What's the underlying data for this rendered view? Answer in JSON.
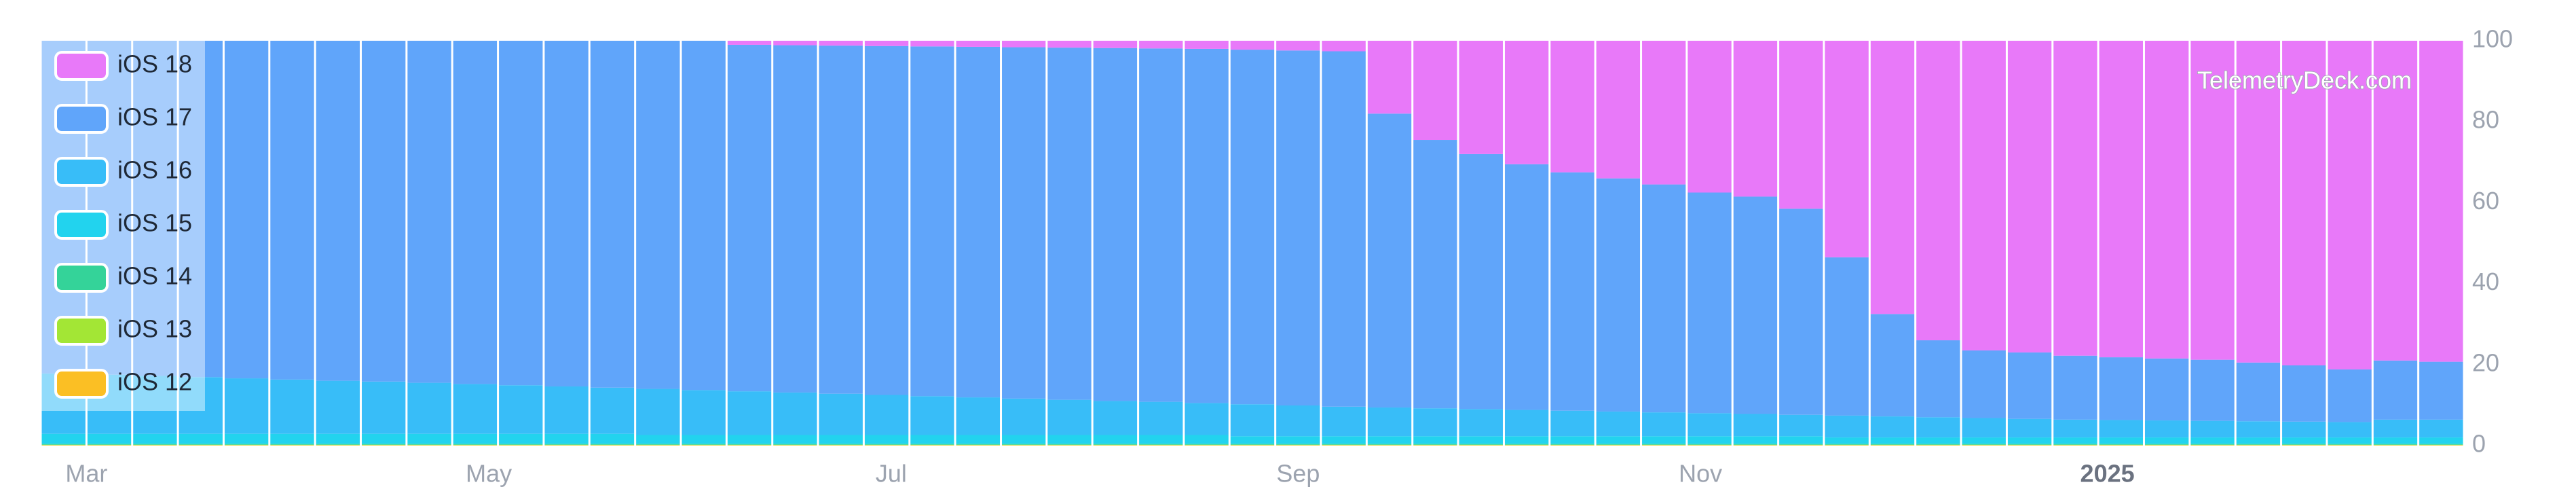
{
  "chart_data": {
    "type": "stacked-bar",
    "watermark": "TelemetryDeck.com",
    "legend": "upper-left",
    "x": [
      0,
      1,
      2,
      3,
      4,
      5,
      6,
      7,
      8,
      9,
      10,
      11,
      12,
      13,
      14,
      15,
      16,
      17,
      18,
      19,
      20,
      21,
      22,
      23,
      24,
      25,
      26,
      27,
      28,
      29,
      30,
      31,
      32,
      33,
      34,
      35,
      36,
      37,
      38,
      39,
      40,
      41,
      42,
      43,
      44,
      45,
      46,
      47,
      48,
      49,
      50,
      51,
      52
    ],
    "xlim": [
      0,
      53
    ],
    "xticks": [
      {
        "value": 1.0,
        "label": "Mar"
      },
      {
        "value": 9.8,
        "label": "May"
      },
      {
        "value": 18.6,
        "label": "Jul"
      },
      {
        "value": 27.5,
        "label": "Sep"
      },
      {
        "value": 36.3,
        "label": "Nov"
      },
      {
        "value": 45.2,
        "label": "2025",
        "bold": true
      }
    ],
    "ylim": [
      0,
      100
    ],
    "yticks": [
      0,
      20,
      40,
      60,
      80,
      100
    ],
    "series": [
      {
        "name": "iOS 18",
        "color": "#e879f9",
        "values": [
          0,
          0,
          0,
          0,
          0,
          0,
          0,
          0,
          0,
          0,
          0,
          0,
          0,
          0,
          0,
          1.0,
          1.1,
          1.2,
          1.3,
          1.4,
          1.5,
          1.6,
          1.7,
          1.8,
          1.9,
          2.0,
          2.2,
          2.4,
          2.6,
          18,
          24.5,
          28,
          30.5,
          32.5,
          34,
          35.5,
          37.5,
          38.5,
          41.5,
          53.5,
          67.5,
          74,
          76.5,
          77,
          77.8,
          78.2,
          78.5,
          78.8,
          79.5,
          80.2,
          81.2,
          79,
          79.3
        ]
      },
      {
        "name": "iOS 17",
        "color": "#60a5fa",
        "values": [
          82.2,
          82.5,
          82.8,
          83.1,
          83.4,
          83.7,
          84.0,
          84.2,
          84.5,
          84.8,
          85.1,
          85.4,
          85.7,
          86.0,
          86.3,
          85.6,
          85.8,
          86.0,
          86.2,
          86.4,
          86.6,
          86.8,
          87.0,
          87.2,
          87.3,
          87.5,
          87.6,
          87.7,
          87.8,
          72.6,
          66.3,
          63.0,
          60.7,
          58.9,
          57.6,
          56.3,
          54.5,
          53.7,
          50.9,
          39.1,
          25.3,
          19.0,
          16.7,
          16.4,
          15.8,
          15.5,
          15.3,
          15.1,
          14.5,
          13.9,
          13.0,
          14.6,
          14.3
        ]
      },
      {
        "name": "iOS 16",
        "color": "#38bdf8",
        "values": [
          14.9,
          14.6,
          14.3,
          14.0,
          13.7,
          13.4,
          13.1,
          12.9,
          12.6,
          12.3,
          12.0,
          11.7,
          11.4,
          11.4,
          11.1,
          10.8,
          10.5,
          10.2,
          9.9,
          9.6,
          9.3,
          9.0,
          8.7,
          8.4,
          8.2,
          7.9,
          7.9,
          7.6,
          7.3,
          7.1,
          6.9,
          6.7,
          6.5,
          6.3,
          6.1,
          5.9,
          5.7,
          5.5,
          5.3,
          5.4,
          5.2,
          5.0,
          4.8,
          4.6,
          4.4,
          4.3,
          4.2,
          4.1,
          4.0,
          3.9,
          3.8,
          4.4,
          4.4
        ]
      },
      {
        "name": "iOS 15",
        "color": "#22d3ee",
        "values": [
          2.5,
          2.5,
          2.5,
          2.5,
          2.5,
          2.5,
          2.5,
          2.5,
          2.5,
          2.5,
          2.5,
          2.5,
          2.5,
          2.2,
          2.2,
          2.2,
          2.2,
          2.2,
          2.2,
          2.2,
          2.2,
          2.2,
          2.2,
          2.2,
          2.2,
          2.2,
          1.9,
          1.9,
          1.9,
          1.9,
          1.9,
          1.9,
          1.9,
          1.9,
          1.9,
          1.9,
          1.9,
          1.9,
          1.9,
          1.6,
          1.6,
          1.6,
          1.6,
          1.6,
          1.6,
          1.6,
          1.6,
          1.6,
          1.6,
          1.6,
          1.6,
          1.6,
          1.6
        ]
      },
      {
        "name": "iOS 14",
        "color": "#34d399",
        "values": [
          0.2,
          0.2,
          0.2,
          0.2,
          0.2,
          0.2,
          0.2,
          0.2,
          0.2,
          0.2,
          0.2,
          0.2,
          0.2,
          0.2,
          0.2,
          0.2,
          0.2,
          0.2,
          0.2,
          0.2,
          0.2,
          0.2,
          0.2,
          0.2,
          0.2,
          0.2,
          0.2,
          0.2,
          0.2,
          0.2,
          0.2,
          0.2,
          0.2,
          0.2,
          0.2,
          0.2,
          0.2,
          0.2,
          0.2,
          0.2,
          0.2,
          0.2,
          0.2,
          0.2,
          0.2,
          0.2,
          0.2,
          0.2,
          0.2,
          0.2,
          0.2,
          0.2,
          0.2
        ]
      },
      {
        "name": "iOS 13",
        "color": "#a3e635",
        "values": [
          0.1,
          0.1,
          0.1,
          0.1,
          0.1,
          0.1,
          0.1,
          0.1,
          0.1,
          0.1,
          0.1,
          0.1,
          0.1,
          0.1,
          0.1,
          0.1,
          0.1,
          0.1,
          0.1,
          0.1,
          0.1,
          0.1,
          0.1,
          0.1,
          0.1,
          0.1,
          0.1,
          0.1,
          0.1,
          0.1,
          0.1,
          0.1,
          0.1,
          0.1,
          0.1,
          0.1,
          0.1,
          0.1,
          0.1,
          0.1,
          0.1,
          0.1,
          0.1,
          0.1,
          0.1,
          0.1,
          0.1,
          0.1,
          0.1,
          0.1,
          0.1,
          0.1,
          0.1
        ]
      },
      {
        "name": "iOS 12",
        "color": "#fbbf24",
        "values": [
          0.1,
          0.1,
          0.1,
          0.1,
          0.1,
          0.1,
          0.1,
          0.1,
          0.1,
          0.1,
          0.1,
          0.1,
          0.1,
          0.1,
          0.1,
          0.1,
          0.1,
          0.1,
          0.1,
          0.1,
          0.1,
          0.1,
          0.1,
          0.1,
          0.1,
          0.1,
          0.1,
          0.1,
          0.1,
          0.1,
          0.1,
          0.1,
          0.1,
          0.1,
          0.1,
          0.1,
          0.1,
          0.1,
          0.1,
          0.1,
          0.1,
          0.1,
          0.1,
          0.1,
          0.1,
          0.1,
          0.1,
          0.1,
          0.1,
          0.1,
          0.1,
          0.1,
          0.1
        ]
      }
    ]
  }
}
